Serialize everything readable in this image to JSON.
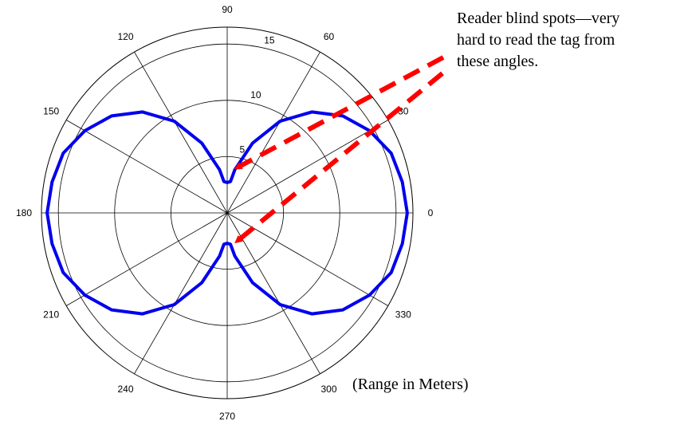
{
  "chart_data": {
    "type": "polar-line",
    "radial_ticks": [
      5,
      10,
      15
    ],
    "radial_max": 16.5,
    "angle_ticks": [
      0,
      30,
      60,
      90,
      120,
      150,
      180,
      210,
      240,
      270,
      300,
      330
    ],
    "line_color": "#0000ee",
    "series": [
      {
        "angles_deg": [
          0,
          10,
          20,
          30,
          40,
          50,
          60,
          70,
          80,
          84,
          90,
          96,
          100,
          110,
          120,
          130,
          140,
          150,
          160,
          170,
          180,
          190,
          200,
          210,
          220,
          230,
          240,
          250,
          260,
          264,
          270,
          276,
          280,
          290,
          300,
          310,
          320,
          330,
          340,
          350,
          360
        ],
        "radii": [
          16.0,
          15.8,
          15.5,
          14.6,
          13.4,
          11.7,
          9.4,
          6.6,
          3.9,
          2.8,
          2.7,
          2.8,
          3.9,
          6.6,
          9.4,
          11.7,
          13.4,
          14.6,
          15.5,
          15.8,
          16.0,
          15.8,
          15.5,
          14.6,
          13.4,
          11.7,
          9.4,
          6.6,
          3.9,
          2.8,
          2.7,
          2.8,
          3.9,
          6.6,
          9.4,
          11.7,
          13.4,
          14.6,
          15.5,
          15.8,
          16.0
        ]
      }
    ]
  },
  "annotation": {
    "text_lines": [
      "Reader blind spots—very",
      "hard to read the tag from",
      "these angles."
    ],
    "arrow_color": "#ff0000"
  },
  "units_label": "(Range in Meters)"
}
